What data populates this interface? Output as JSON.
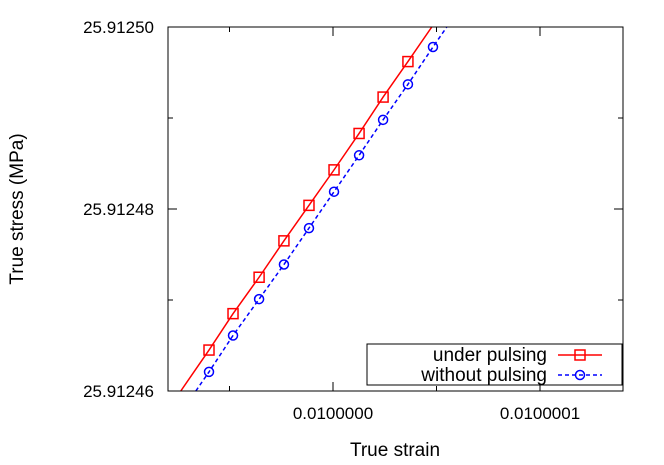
{
  "chart_data": {
    "type": "line",
    "title": "",
    "xlabel": "True strain",
    "ylabel": "True stress (MPa)",
    "xlim": [
      0.00999992,
      0.01000014
    ],
    "ylim": [
      25.91246,
      25.9125
    ],
    "x_ticks": [
      {
        "value": 0.01,
        "label": "0.0100000"
      },
      {
        "value": 0.0100001,
        "label": "0.0100001"
      }
    ],
    "y_ticks": [
      {
        "value": 25.91246,
        "label": "25.91246"
      },
      {
        "value": 25.91248,
        "label": "25.91248"
      },
      {
        "value": 25.9125,
        "label": "25.91250"
      }
    ],
    "grid": false,
    "legend": "bottom-right",
    "series": [
      {
        "name": "under pulsing",
        "color": "#ff0000",
        "marker": "square",
        "line": "solid",
        "x": [
          0.0099999401,
          0.0099999517,
          0.0099999643,
          0.0099999763,
          0.0099999884,
          0.0100000005,
          0.0100000126,
          0.0100000242,
          0.0100000362
        ],
        "y": [
          25.9124645,
          25.9124685,
          25.9124725,
          25.9124765,
          25.9124804,
          25.9124843,
          25.9124883,
          25.9124923,
          25.9124962
        ]
      },
      {
        "name": "without pulsing",
        "color": "#0000ff",
        "marker": "circle",
        "line": "dashed",
        "x": [
          0.0099999401,
          0.0099999517,
          0.0099999643,
          0.0099999763,
          0.0099999884,
          0.0100000005,
          0.0100000126,
          0.0100000242,
          0.0100000362,
          0.0100000483
        ],
        "y": [
          25.9124621,
          25.9124661,
          25.9124701,
          25.9124739,
          25.9124779,
          25.9124819,
          25.9124859,
          25.9124898,
          25.9124937,
          25.9124978
        ]
      }
    ]
  }
}
